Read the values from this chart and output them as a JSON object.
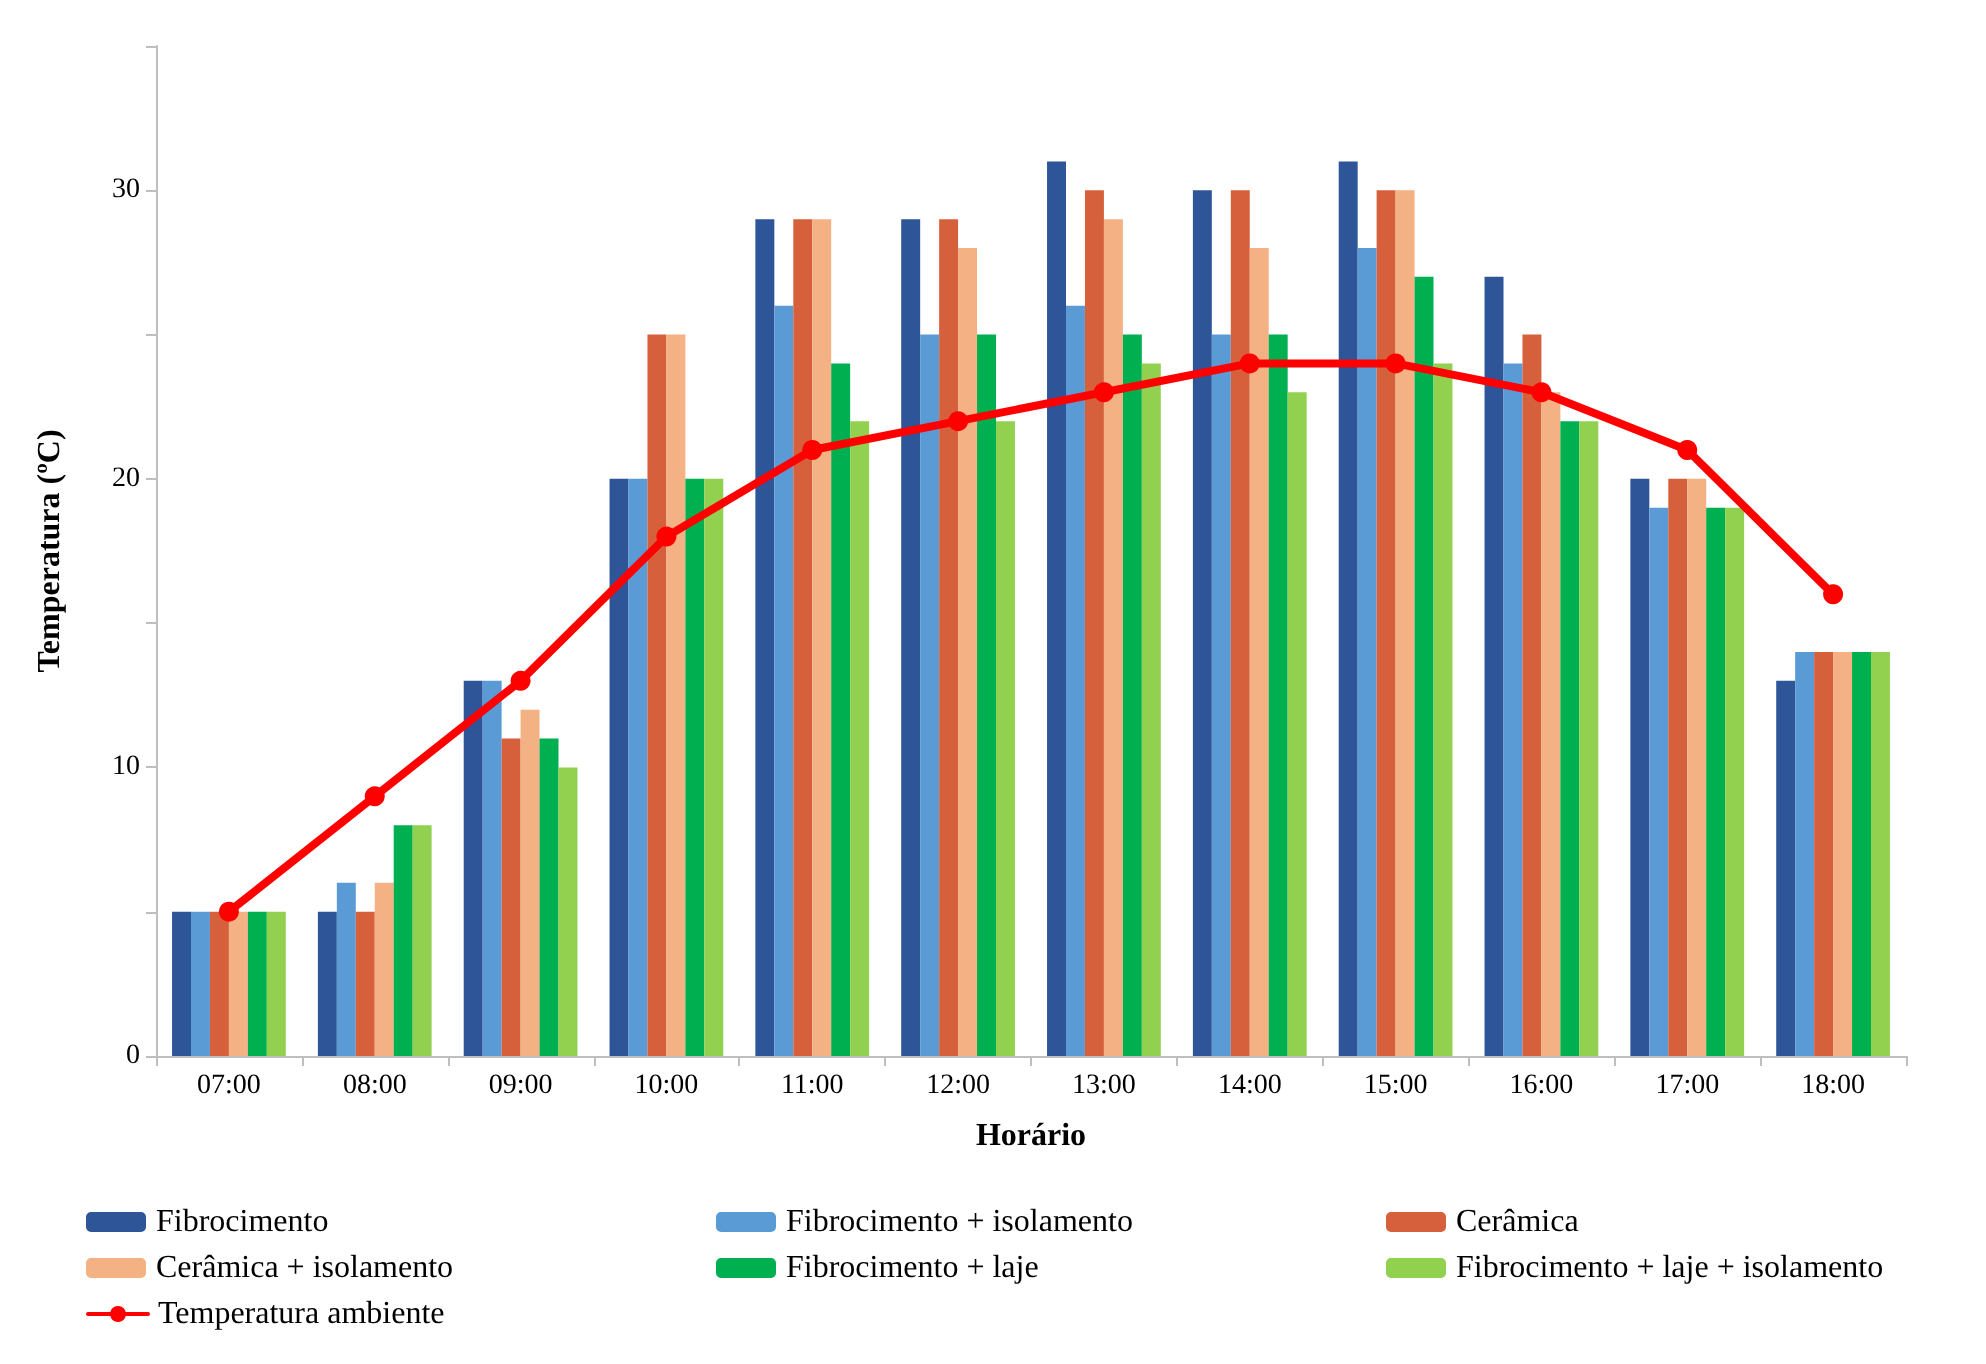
{
  "chart_data": {
    "type": "bar",
    "xlabel": "Horário",
    "ylabel": "Temperatura (ºC)",
    "categories": [
      "07:00",
      "08:00",
      "09:00",
      "10:00",
      "11:00",
      "12:00",
      "13:00",
      "14:00",
      "15:00",
      "16:00",
      "17:00",
      "18:00"
    ],
    "series": [
      {
        "name": "Fibrocimento",
        "color": "#2e5597",
        "values": [
          5,
          5,
          13,
          20,
          29,
          29,
          31,
          30,
          31,
          27,
          20,
          13
        ]
      },
      {
        "name": "Fibrocimento + isolamento",
        "color": "#5b9bd5",
        "values": [
          5,
          6,
          13,
          20,
          26,
          25,
          26,
          25,
          28,
          24,
          19,
          14
        ]
      },
      {
        "name": "Cerâmica",
        "color": "#d65f3c",
        "values": [
          5,
          5,
          11,
          25,
          29,
          29,
          30,
          30,
          30,
          25,
          20,
          14
        ]
      },
      {
        "name": "Cerâmica + isolamento",
        "color": "#f4b183",
        "values": [
          5,
          6,
          12,
          25,
          29,
          28,
          29,
          28,
          30,
          23,
          20,
          14
        ]
      },
      {
        "name": "Fibrocimento + laje",
        "color": "#00b050",
        "values": [
          5,
          8,
          11,
          20,
          24,
          25,
          25,
          25,
          27,
          22,
          19,
          14
        ]
      },
      {
        "name": "Fibrocimento + laje + isolamento",
        "color": "#92d050",
        "values": [
          5,
          8,
          10,
          20,
          22,
          22,
          24,
          23,
          24,
          22,
          19,
          14
        ]
      },
      {
        "name": "Temperatura ambiente",
        "type": "line",
        "color": "#ff0000",
        "marker": "circle",
        "values": [
          5,
          9,
          13,
          18,
          21,
          22,
          23,
          24,
          24,
          23,
          21,
          16
        ]
      }
    ],
    "ylim": [
      0,
      35
    ],
    "yticks": [
      0,
      {
        "value": 5,
        "label": null
      },
      10,
      {
        "value": 15,
        "label": null
      },
      20,
      {
        "value": 25,
        "label": null
      },
      30,
      {
        "value": 35,
        "label": null
      }
    ],
    "grid": false,
    "legend": "bottom"
  }
}
